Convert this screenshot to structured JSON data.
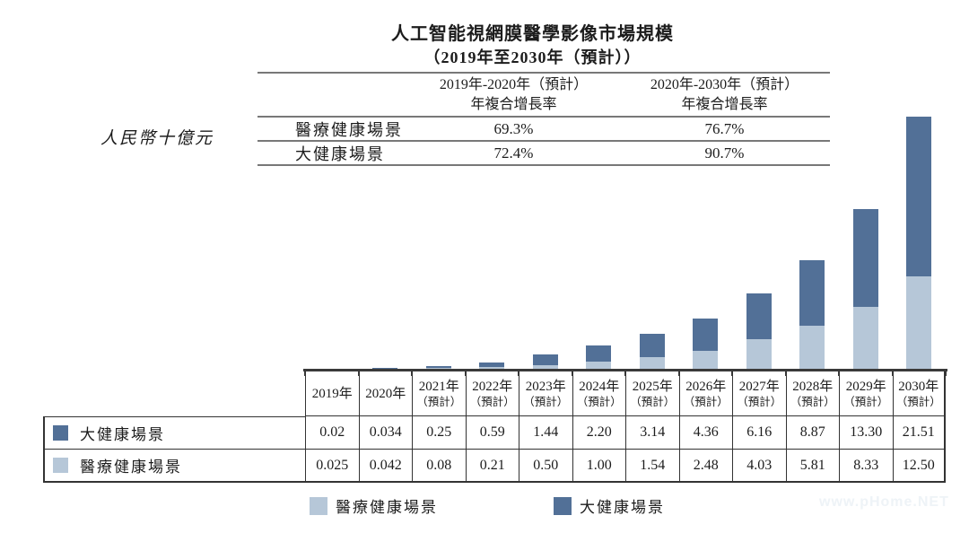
{
  "title": "人工智能視網膜醫學影像市場規模",
  "subtitle": "（2019年至2030年（預計））",
  "unit_label": "人民幣十億元",
  "colors": {
    "dark_series": "#527097",
    "light_series": "#b6c7d8"
  },
  "cagr_table": {
    "col_headers": [
      {
        "line1": "2019年-2020年（預計）",
        "line2": "年複合增長率"
      },
      {
        "line1": "2020年-2030年（預計）",
        "line2": "年複合增長率"
      }
    ],
    "rows": [
      {
        "label": "醫療健康場景",
        "cagr_2019_2020": "69.3%",
        "cagr_2020_2030": "76.7%"
      },
      {
        "label": "大健康場景",
        "cagr_2019_2020": "72.4%",
        "cagr_2020_2030": "90.7%"
      }
    ]
  },
  "chart_data": {
    "type": "bar",
    "stacked": true,
    "title": "人工智能視網膜醫學影像市場規模（2019年至2030年（預計））",
    "ylabel": "人民幣十億元",
    "ylim": [
      0,
      34.5
    ],
    "grid": false,
    "legend_position": "bottom",
    "categories": [
      "2019年",
      "2020年",
      "2021年（預計）",
      "2022年（預計）",
      "2023年（預計）",
      "2024年（預計）",
      "2025年（預計）",
      "2026年（預計）",
      "2027年（預計）",
      "2028年（預計）",
      "2029年（預計）",
      "2030年（預計）"
    ],
    "series": [
      {
        "name": "醫療健康場景",
        "stack_position": "bottom",
        "color": "#b6c7d8",
        "values": [
          0.025,
          0.042,
          0.08,
          0.21,
          0.5,
          1.0,
          1.54,
          2.48,
          4.03,
          5.81,
          8.33,
          12.5
        ]
      },
      {
        "name": "大健康場景",
        "stack_position": "top",
        "color": "#527097",
        "values": [
          0.02,
          0.034,
          0.25,
          0.59,
          1.44,
          2.2,
          3.14,
          4.36,
          6.16,
          8.87,
          13.3,
          21.51
        ]
      }
    ]
  },
  "data_table": {
    "year_headers": [
      {
        "year": "2019年",
        "note": ""
      },
      {
        "year": "2020年",
        "note": ""
      },
      {
        "year": "2021年",
        "note": "（預計）"
      },
      {
        "year": "2022年",
        "note": "（預計）"
      },
      {
        "year": "2023年",
        "note": "（預計）"
      },
      {
        "year": "2024年",
        "note": "（預計）"
      },
      {
        "year": "2025年",
        "note": "（預計）"
      },
      {
        "year": "2026年",
        "note": "（預計）"
      },
      {
        "year": "2027年",
        "note": "（預計）"
      },
      {
        "year": "2028年",
        "note": "（預計）"
      },
      {
        "year": "2029年",
        "note": "（預計）"
      },
      {
        "year": "2030年",
        "note": "（預計）"
      }
    ],
    "rows": [
      {
        "label": "大健康場景",
        "swatch_color": "#527097",
        "values": [
          "0.02",
          "0.034",
          "0.25",
          "0.59",
          "1.44",
          "2.20",
          "3.14",
          "4.36",
          "6.16",
          "8.87",
          "13.30",
          "21.51"
        ]
      },
      {
        "label": "醫療健康場景",
        "swatch_color": "#b6c7d8",
        "values": [
          "0.025",
          "0.042",
          "0.08",
          "0.21",
          "0.50",
          "1.00",
          "1.54",
          "2.48",
          "4.03",
          "5.81",
          "8.33",
          "12.50"
        ]
      }
    ]
  },
  "legend": {
    "items": [
      {
        "label": "醫療健康場景",
        "color": "#b6c7d8"
      },
      {
        "label": "大健康場景",
        "color": "#527097"
      }
    ]
  },
  "watermark": "www.pHome.NET"
}
